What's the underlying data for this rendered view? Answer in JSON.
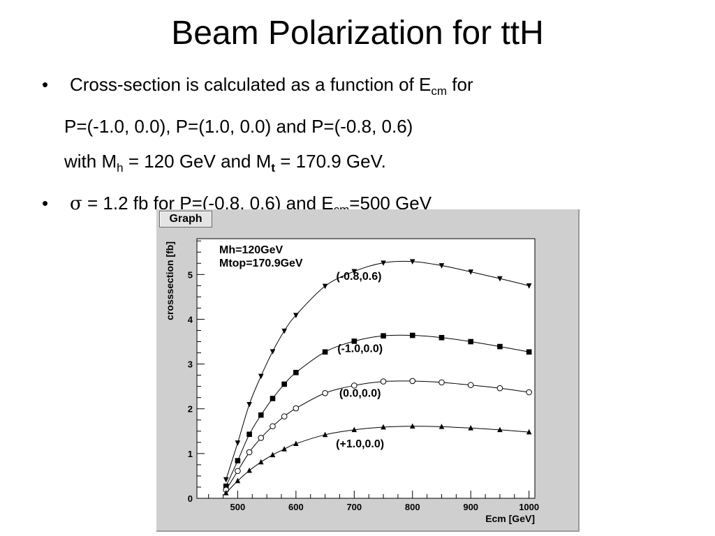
{
  "slide": {
    "title": "Beam Polarization for ttH",
    "bullet_char": "•",
    "bullet1": {
      "line1_pre": "Cross-section is calculated as a function of E",
      "line1_sub": "cm",
      "line1_post": " for",
      "line2": "P=(-1.0, 0.0), P=(1.0, 0.0) and P=(-0.8, 0.6)",
      "line3_pre": "with M",
      "line3_sub1": "h",
      "line3_mid": " = 120 GeV and M",
      "line3_sub2": "t",
      "line3_post": " = 170.9 GeV."
    },
    "bullet2": {
      "sigma": "σ",
      "text_pre": " = 1.2 fb for P=(-0.8, 0.6) and E",
      "text_sub": "cm",
      "text_post": "=500 GeV"
    }
  },
  "graph_tab_label": "Graph",
  "chart_data": {
    "type": "line",
    "xlabel": "Ecm [GeV]",
    "ylabel": "crosssection [fb]",
    "xlim": [
      430,
      1010
    ],
    "ylim": [
      0,
      5.8
    ],
    "x_ticks": [
      500,
      600,
      700,
      800,
      900,
      1000
    ],
    "y_ticks": [
      0,
      1,
      2,
      3,
      4,
      5
    ],
    "annotations": [
      "Mh=120GeV",
      "Mtop=170.9GeV"
    ],
    "grid": false,
    "series": [
      {
        "name": "(-0.8,0.6)",
        "marker": "triangle-down",
        "x": [
          480,
          500,
          520,
          540,
          560,
          580,
          600,
          650,
          700,
          750,
          800,
          850,
          900,
          950,
          1000
        ],
        "y": [
          0.42,
          1.24,
          2.1,
          2.73,
          3.28,
          3.74,
          4.09,
          4.74,
          5.07,
          5.26,
          5.29,
          5.2,
          5.06,
          4.91,
          4.75
        ]
      },
      {
        "name": "(-1.0,0.0)",
        "marker": "square",
        "x": [
          480,
          500,
          520,
          540,
          560,
          580,
          600,
          650,
          700,
          750,
          800,
          850,
          900,
          950,
          1000
        ],
        "y": [
          0.27,
          0.84,
          1.43,
          1.86,
          2.23,
          2.55,
          2.81,
          3.27,
          3.51,
          3.63,
          3.64,
          3.59,
          3.5,
          3.39,
          3.27
        ]
      },
      {
        "name": "(0.0,0.0)",
        "marker": "circle-open",
        "x": [
          480,
          500,
          520,
          540,
          560,
          580,
          600,
          650,
          700,
          750,
          800,
          850,
          900,
          950,
          1000
        ],
        "y": [
          0.19,
          0.61,
          1.03,
          1.35,
          1.61,
          1.83,
          2.01,
          2.35,
          2.52,
          2.61,
          2.62,
          2.59,
          2.53,
          2.46,
          2.37
        ]
      },
      {
        "name": "(+1.0,0.0)",
        "marker": "triangle-up",
        "x": [
          480,
          500,
          520,
          540,
          560,
          580,
          600,
          650,
          700,
          750,
          800,
          850,
          900,
          950,
          1000
        ],
        "y": [
          0.12,
          0.39,
          0.62,
          0.81,
          0.97,
          1.1,
          1.22,
          1.42,
          1.53,
          1.59,
          1.61,
          1.6,
          1.57,
          1.53,
          1.48
        ]
      }
    ]
  }
}
